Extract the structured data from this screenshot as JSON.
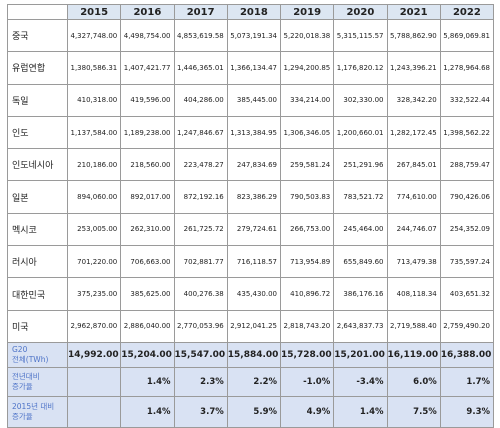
{
  "headers": [
    "2015",
    "2016",
    "2017",
    "2018",
    "2019",
    "2020",
    "2021",
    "2022"
  ],
  "rows": [
    {
      "label": "중국",
      "values": [
        "4,327,748.00",
        "4,498,754.00",
        "4,853,619.58",
        "5,073,191.34",
        "5,220,018.38",
        "5,315,115.57",
        "5,788,862.90",
        "5,869,069.81"
      ]
    },
    {
      "label": "유럽연합",
      "values": [
        "1,380,586.31",
        "1,407,421.77",
        "1,446,365.01",
        "1,366,134.47",
        "1,294,200.85",
        "1,176,820.12",
        "1,243,396.21",
        "1,278,964.68"
      ]
    },
    {
      "label": "독일",
      "values": [
        "410,318.00",
        "419,596.00",
        "404,286.00",
        "385,445.00",
        "334,214.00",
        "302,330.00",
        "328,342.20",
        "332,522.44"
      ]
    },
    {
      "label": "인도",
      "values": [
        "1,137,584.00",
        "1,189,238.00",
        "1,247,846.67",
        "1,313,384.95",
        "1,306,346.05",
        "1,200,660.01",
        "1,282,172.45",
        "1,398,562.22"
      ]
    },
    {
      "label": "인도네시아",
      "values": [
        "210,186.00",
        "218,560.00",
        "223,478.27",
        "247,834.69",
        "259,581.24",
        "251,291.96",
        "267,845.01",
        "288,759.47"
      ]
    },
    {
      "label": "일본",
      "values": [
        "894,060.00",
        "892,017.00",
        "872,192.16",
        "823,386.29",
        "790,503.83",
        "783,521.72",
        "774,610.00",
        "790,426.06"
      ]
    },
    {
      "label": "멕시코",
      "values": [
        "253,005.00",
        "262,310.00",
        "261,725.72",
        "279,724.61",
        "266,753.00",
        "245,464.00",
        "244,746.07",
        "254,352.09"
      ]
    },
    {
      "label": "러시아",
      "values": [
        "701,220.00",
        "706,663.00",
        "702,881.77",
        "716,118.57",
        "713,954.89",
        "655,849.60",
        "713,479.38",
        "735,597.24"
      ]
    },
    {
      "label": "대한민국",
      "values": [
        "375,235.00",
        "385,625.00",
        "400,276.38",
        "435,430.00",
        "410,896.72",
        "386,176.16",
        "408,118.34",
        "403,651.32"
      ]
    },
    {
      "label": "미국",
      "values": [
        "2,962,870.00",
        "2,886,040.00",
        "2,770,053.96",
        "2,912,041.25",
        "2,818,743.20",
        "2,643,837.73",
        "2,719,588.40",
        "2,759,490.20"
      ]
    }
  ],
  "total": {
    "label_line1": "G20",
    "label_line2": "전체(TWh)",
    "values": [
      "14,992.00",
      "15,204.00",
      "15,547.00",
      "15,884.00",
      "15,728.00",
      "15,201.00",
      "16,119.00",
      "16,388.00"
    ]
  },
  "yoy": {
    "label_line1": "전년대비",
    "label_line2": "증가율",
    "values": [
      "",
      "1.4%",
      "2.3%",
      "2.2%",
      "-1.0%",
      "-3.4%",
      "6.0%",
      "1.7%"
    ]
  },
  "since2015": {
    "label_line1": "2015년 대비",
    "label_line2": "증가율",
    "values": [
      "",
      "1.4%",
      "3.7%",
      "5.9%",
      "4.9%",
      "1.4%",
      "7.5%",
      "9.3%"
    ]
  }
}
